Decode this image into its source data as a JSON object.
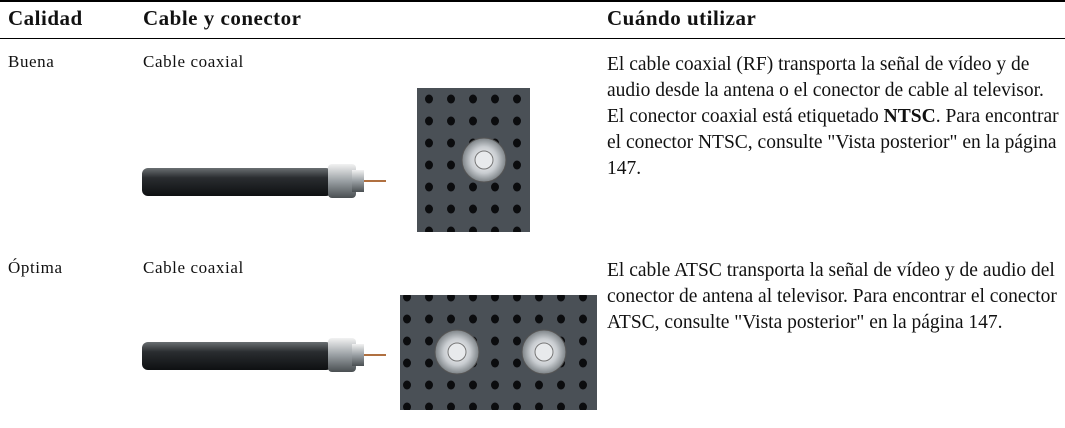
{
  "table": {
    "headers": [
      "Calidad",
      "Cable y conector",
      "Cuándo utilizar"
    ],
    "rows": [
      {
        "quality": "Buena",
        "cable": "Cable coaxial",
        "description": [
          "El cable coaxial (RF) transporta la señal de vídeo y de audio desde la antena o el conector de cable al televisor. El conector coaxial está etiquetado ",
          "NTSC",
          ". Para encontrar el conector NTSC, consulte \"Vista posterior\" en la página 147."
        ]
      },
      {
        "quality": "Óptima",
        "cable": "Cable coaxial",
        "description": [
          "El cable ATSC transporta la señal de vídeo y de audio del conector de antena al televisor. Para encontrar el conector ATSC, consulte \"Vista posterior\" en la página 147."
        ]
      }
    ]
  }
}
